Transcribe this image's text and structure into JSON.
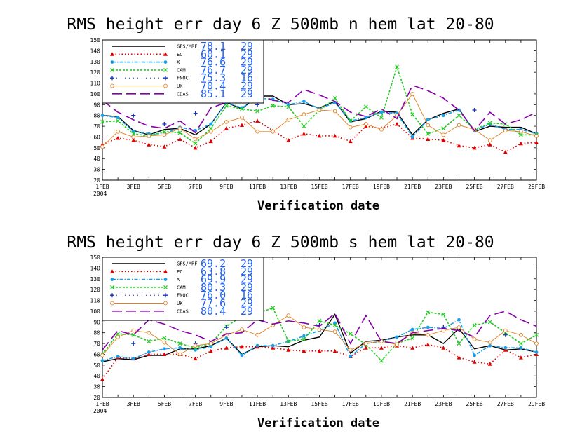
{
  "chart_data": [
    {
      "type": "line",
      "title": "RMS height err   day 6   Z 500mb   n hem   lat 20-80",
      "xlabel": "Verification date",
      "ylabel": "",
      "ylim": [
        20,
        150
      ],
      "yticks": [
        20,
        30,
        40,
        50,
        60,
        70,
        80,
        90,
        100,
        110,
        120,
        130,
        140,
        150
      ],
      "x": [
        "1FEB",
        "2FEB",
        "3FEB",
        "4FEB",
        "5FEB",
        "6FEB",
        "7FEB",
        "8FEB",
        "9FEB",
        "10FEB",
        "11FEB",
        "12FEB",
        "13FEB",
        "14FEB",
        "15FEB",
        "16FEB",
        "17FEB",
        "18FEB",
        "19FEB",
        "20FEB",
        "21FEB",
        "22FEB",
        "23FEB",
        "24FEB",
        "25FEB",
        "26FEB",
        "27FEB",
        "28FEB",
        "29FEB"
      ],
      "xtick_labels": [
        "1FEB",
        "3FEB",
        "5FEB",
        "7FEB",
        "9FEB",
        "11FEB",
        "13FEB",
        "15FEB",
        "17FEB",
        "19FEB",
        "21FEB",
        "23FEB",
        "25FEB",
        "27FEB",
        "29FEB"
      ],
      "xtick_year": "2004",
      "series": [
        {
          "name": "GFS/MRF",
          "mean": "78.1",
          "count": "29",
          "color": "#000000",
          "values": [
            80,
            79,
            66,
            62,
            67,
            68,
            62,
            72,
            92,
            86,
            98,
            98,
            90,
            91,
            87,
            93,
            74,
            77,
            84,
            83,
            62,
            76,
            82,
            86,
            65,
            70,
            69,
            69,
            63
          ]
        },
        {
          "name": "EC",
          "mean": "60.1",
          "count": "29",
          "color": "#dd0000",
          "values": [
            53,
            59,
            57,
            53,
            51,
            58,
            50,
            56,
            68,
            71,
            75,
            66,
            57,
            63,
            61,
            61,
            56,
            70,
            68,
            72,
            59,
            58,
            57,
            52,
            50,
            53,
            46,
            54,
            55
          ]
        },
        {
          "name": "X",
          "mean": "76.6",
          "count": "29",
          "color": "#1aa0e8",
          "values": [
            80,
            78,
            65,
            63,
            63,
            69,
            66,
            72,
            92,
            87,
            96,
            95,
            90,
            93,
            86,
            92,
            75,
            78,
            83,
            82,
            60,
            76,
            80,
            85,
            66,
            72,
            67,
            67,
            63
          ]
        },
        {
          "name": "CAM",
          "mean": "76.7",
          "count": "29",
          "color": "#22cc22",
          "values": [
            74,
            75,
            63,
            61,
            65,
            64,
            54,
            68,
            89,
            86,
            84,
            89,
            88,
            70,
            85,
            96,
            75,
            88,
            78,
            125,
            81,
            63,
            68,
            80,
            67,
            73,
            72,
            62,
            62
          ]
        },
        {
          "name": "FNOC",
          "mean": "75.3",
          "count": "16",
          "color": "#1030c0",
          "values": [
            null,
            null,
            80,
            null,
            72,
            null,
            82,
            null,
            null,
            null,
            90,
            null,
            null,
            null,
            null,
            null,
            null,
            null,
            null,
            null,
            null,
            null,
            null,
            null,
            85,
            null,
            null,
            null,
            null
          ]
        },
        {
          "name": "UK",
          "mean": "70.4",
          "count": "29",
          "color": "#e08020",
          "values": [
            51,
            65,
            60,
            61,
            62,
            68,
            58,
            65,
            74,
            78,
            65,
            65,
            76,
            81,
            85,
            84,
            69,
            72,
            67,
            80,
            100,
            71,
            62,
            71,
            67,
            57,
            66,
            65,
            61
          ]
        },
        {
          "name": "CDAS",
          "mean": "85.1",
          "count": "29",
          "color": "#8800aa",
          "values": [
            94,
            83,
            76,
            70,
            68,
            75,
            64,
            87,
            92,
            94,
            100,
            94,
            92,
            104,
            99,
            93,
            83,
            79,
            86,
            77,
            108,
            103,
            96,
            85,
            66,
            83,
            72,
            76,
            83
          ]
        }
      ]
    },
    {
      "type": "line",
      "title": "RMS height err   day 6   Z 500mb   s hem   lat 20-80",
      "xlabel": "Verification date",
      "ylabel": "",
      "ylim": [
        20,
        150
      ],
      "yticks": [
        20,
        30,
        40,
        50,
        60,
        70,
        80,
        90,
        100,
        110,
        120,
        130,
        140,
        150
      ],
      "x": [
        "1FEB",
        "2FEB",
        "3FEB",
        "4FEB",
        "5FEB",
        "6FEB",
        "7FEB",
        "8FEB",
        "9FEB",
        "10FEB",
        "11FEB",
        "12FEB",
        "13FEB",
        "14FEB",
        "15FEB",
        "16FEB",
        "17FEB",
        "18FEB",
        "19FEB",
        "20FEB",
        "21FEB",
        "22FEB",
        "23FEB",
        "24FEB",
        "25FEB",
        "26FEB",
        "27FEB",
        "28FEB",
        "29FEB"
      ],
      "xtick_labels": [
        "1FEB",
        "3FEB",
        "5FEB",
        "7FEB",
        "9FEB",
        "11FEB",
        "13FEB",
        "15FEB",
        "17FEB",
        "19FEB",
        "21FEB",
        "23FEB",
        "25FEB",
        "27FEB",
        "29FEB"
      ],
      "xtick_year": "2004",
      "series": [
        {
          "name": "GFS/MRF",
          "mean": "69.2",
          "count": "29",
          "color": "#000000",
          "values": [
            53,
            56,
            55,
            59,
            59,
            65,
            65,
            68,
            75,
            60,
            67,
            68,
            67,
            73,
            76,
            97,
            61,
            72,
            73,
            76,
            78,
            78,
            70,
            84,
            65,
            68,
            64,
            65,
            62
          ]
        },
        {
          "name": "EC",
          "mean": "63.8",
          "count": "29",
          "color": "#dd0000",
          "values": [
            37,
            57,
            56,
            60,
            60,
            60,
            56,
            63,
            66,
            67,
            67,
            66,
            64,
            63,
            63,
            63,
            58,
            66,
            66,
            68,
            66,
            69,
            66,
            57,
            53,
            51,
            64,
            57,
            60
          ]
        },
        {
          "name": "X",
          "mean": "69.9",
          "count": "29",
          "color": "#1aa0e8",
          "values": [
            54,
            58,
            56,
            62,
            65,
            66,
            64,
            67,
            75,
            59,
            68,
            68,
            72,
            77,
            82,
            89,
            58,
            70,
            72,
            76,
            83,
            85,
            84,
            92,
            59,
            68,
            66,
            66,
            62
          ]
        },
        {
          "name": "CAM",
          "mean": "80.3",
          "count": "29",
          "color": "#22cc22",
          "values": [
            60,
            79,
            78,
            72,
            75,
            70,
            66,
            70,
            86,
            95,
            98,
            103,
            72,
            74,
            91,
            87,
            79,
            69,
            54,
            70,
            75,
            99,
            97,
            70,
            87,
            90,
            80,
            70,
            78
          ]
        },
        {
          "name": "FNOC",
          "mean": "76.0",
          "count": "16",
          "color": "#1030c0",
          "values": [
            null,
            null,
            70,
            null,
            null,
            null,
            70,
            null,
            85,
            null,
            null,
            null,
            null,
            null,
            87,
            null,
            null,
            null,
            null,
            null,
            null,
            null,
            85,
            null,
            null,
            null,
            78,
            null,
            null
          ]
        },
        {
          "name": "UK",
          "mean": "77.6",
          "count": "29",
          "color": "#e08020",
          "values": [
            59,
            76,
            82,
            80,
            71,
            60,
            68,
            70,
            78,
            83,
            78,
            87,
            96,
            85,
            83,
            81,
            64,
            70,
            72,
            69,
            80,
            78,
            82,
            85,
            74,
            71,
            82,
            78,
            70
          ]
        },
        {
          "name": "CDAS",
          "mean": "80.4",
          "count": "29",
          "color": "#8800aa",
          "values": [
            64,
            82,
            78,
            92,
            88,
            82,
            78,
            72,
            79,
            80,
            92,
            88,
            91,
            89,
            86,
            98,
            70,
            96,
            72,
            70,
            80,
            82,
            84,
            82,
            76,
            96,
            100,
            92,
            86
          ]
        }
      ]
    }
  ]
}
